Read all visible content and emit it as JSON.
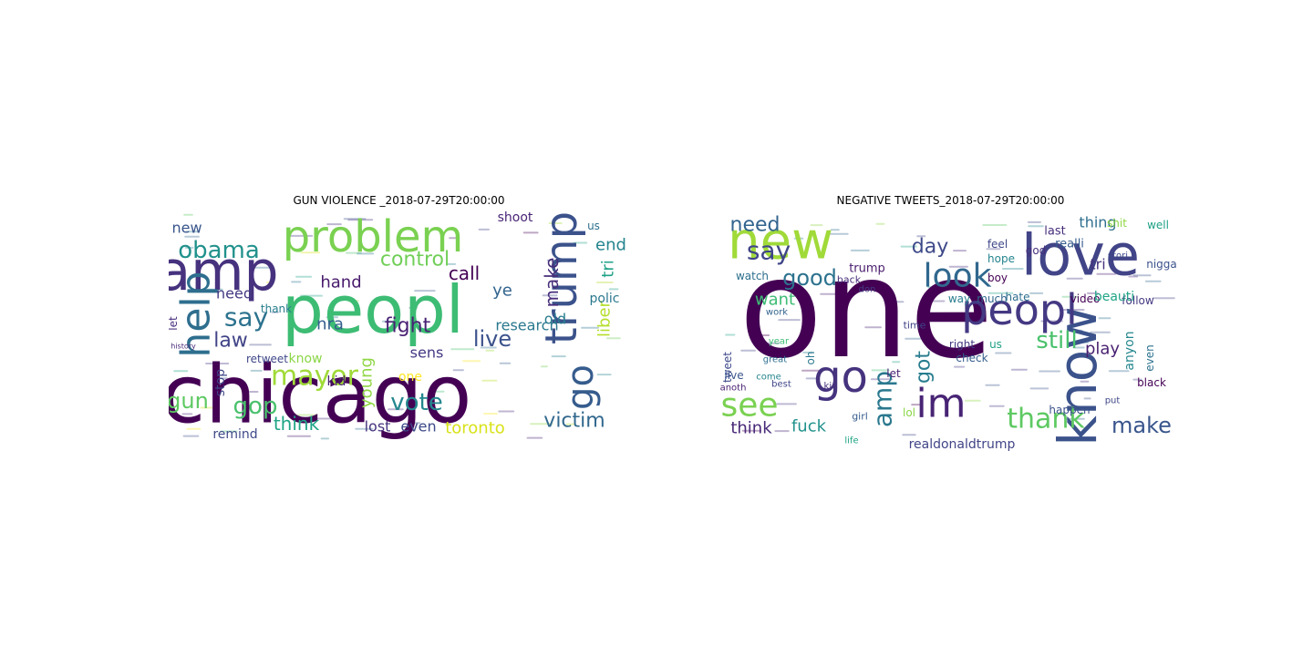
{
  "figure": {
    "panels": [
      {
        "title": "GUN VIOLENCE _2018-07-29T20:00:00",
        "words": [
          {
            "text": "chicago",
            "color": "#440154"
          },
          {
            "text": "peopl",
            "color": "#3dbc74"
          },
          {
            "text": "amp",
            "color": "#46327e"
          },
          {
            "text": "problem",
            "color": "#7ad151"
          },
          {
            "text": "help",
            "color": "#2e6e8e"
          },
          {
            "text": "trump",
            "color": "#3b528b"
          },
          {
            "text": "go",
            "color": "#365c8d"
          },
          {
            "text": "obama",
            "color": "#21918c"
          },
          {
            "text": "mayor",
            "color": "#a0da39"
          },
          {
            "text": "victim",
            "color": "#31688e"
          },
          {
            "text": "fight",
            "color": "#482173"
          },
          {
            "text": "vote",
            "color": "#24878e"
          },
          {
            "text": "gun",
            "color": "#5ec962"
          },
          {
            "text": "gop",
            "color": "#4ac16d"
          },
          {
            "text": "live",
            "color": "#3b528b"
          },
          {
            "text": "control",
            "color": "#70cf57"
          },
          {
            "text": "say",
            "color": "#2c728e"
          },
          {
            "text": "make",
            "color": "#472d7b"
          },
          {
            "text": "liber",
            "color": "#b5de2b"
          },
          {
            "text": "call",
            "color": "#440154"
          },
          {
            "text": "law",
            "color": "#414487"
          },
          {
            "text": "toronto",
            "color": "#d8e219"
          },
          {
            "text": "hand",
            "color": "#481a6c"
          },
          {
            "text": "research",
            "color": "#2a788e"
          },
          {
            "text": "think",
            "color": "#20a486"
          },
          {
            "text": "nra",
            "color": "#355f8d"
          },
          {
            "text": "sens",
            "color": "#443983"
          },
          {
            "text": "need",
            "color": "#443a83"
          },
          {
            "text": "young",
            "color": "#8fd744"
          },
          {
            "text": "tri",
            "color": "#1fa187"
          },
          {
            "text": "lost",
            "color": "#46337e"
          },
          {
            "text": "even",
            "color": "#3e4989"
          },
          {
            "text": "old",
            "color": "#287c8e"
          },
          {
            "text": "end",
            "color": "#25848e"
          },
          {
            "text": "stop",
            "color": "#404688"
          },
          {
            "text": "new",
            "color": "#39558c"
          },
          {
            "text": "ye",
            "color": "#32648e"
          },
          {
            "text": "remind",
            "color": "#3e4a89"
          },
          {
            "text": "know",
            "color": "#8bd646"
          },
          {
            "text": "one",
            "color": "#fde725"
          },
          {
            "text": "shoot",
            "color": "#482475"
          },
          {
            "text": "polic",
            "color": "#2a788e"
          },
          {
            "text": "kid",
            "color": "#481f70"
          },
          {
            "text": "retweet",
            "color": "#3f4788"
          },
          {
            "text": "thank",
            "color": "#287d8e"
          },
          {
            "text": "let",
            "color": "#472f7d"
          },
          {
            "text": "us",
            "color": "#2d708e"
          },
          {
            "text": "history",
            "color": "#482878"
          }
        ]
      },
      {
        "title": "NEGATIVE TWEETS_2018-07-29T20:00:00",
        "words": [
          {
            "text": "one",
            "color": "#440154"
          },
          {
            "text": "new",
            "color": "#a0da39"
          },
          {
            "text": "love",
            "color": "#414487"
          },
          {
            "text": "know",
            "color": "#3b528b"
          },
          {
            "text": "peopl",
            "color": "#443983"
          },
          {
            "text": "im",
            "color": "#482475"
          },
          {
            "text": "go",
            "color": "#46337e"
          },
          {
            "text": "see",
            "color": "#7ad151"
          },
          {
            "text": "look",
            "color": "#31688e"
          },
          {
            "text": "say",
            "color": "#404688"
          },
          {
            "text": "thank",
            "color": "#5ec962"
          },
          {
            "text": "amp",
            "color": "#2a788e"
          },
          {
            "text": "make",
            "color": "#39558c"
          },
          {
            "text": "day",
            "color": "#3e4989"
          },
          {
            "text": "good",
            "color": "#2c728e"
          },
          {
            "text": "need",
            "color": "#32648e"
          },
          {
            "text": "still",
            "color": "#4ac16d"
          },
          {
            "text": "got",
            "color": "#287c8e"
          },
          {
            "text": "fuck",
            "color": "#21918c"
          },
          {
            "text": "think",
            "color": "#482878"
          },
          {
            "text": "want",
            "color": "#3dbc74"
          },
          {
            "text": "play",
            "color": "#481f70"
          },
          {
            "text": "thing",
            "color": "#2e6e8e"
          },
          {
            "text": "realli",
            "color": "#365c8d"
          },
          {
            "text": "last",
            "color": "#472d7b"
          },
          {
            "text": "shit",
            "color": "#8fd744"
          },
          {
            "text": "well",
            "color": "#1fa187"
          },
          {
            "text": "video",
            "color": "#440154"
          },
          {
            "text": "follow",
            "color": "#443a83"
          },
          {
            "text": "beauti",
            "color": "#20a486"
          },
          {
            "text": "tri",
            "color": "#46327e"
          },
          {
            "text": "nigga",
            "color": "#3b528b"
          },
          {
            "text": "anyon",
            "color": "#24878e"
          },
          {
            "text": "realdonaldtrump",
            "color": "#414487"
          },
          {
            "text": "check",
            "color": "#355f8d"
          },
          {
            "text": "trump",
            "color": "#481a6c"
          },
          {
            "text": "watch",
            "color": "#2d708e"
          },
          {
            "text": "feel",
            "color": "#3f4788"
          },
          {
            "text": "hope",
            "color": "#25848e"
          },
          {
            "text": "boy",
            "color": "#440154"
          },
          {
            "text": "god",
            "color": "#472f7d"
          },
          {
            "text": "tweet",
            "color": "#3e4a89"
          },
          {
            "text": "oh",
            "color": "#2a788e"
          },
          {
            "text": "live",
            "color": "#39558c"
          },
          {
            "text": "lol",
            "color": "#8bd646"
          },
          {
            "text": "let",
            "color": "#482173"
          },
          {
            "text": "right",
            "color": "#443983"
          },
          {
            "text": "much",
            "color": "#31688e"
          },
          {
            "text": "hate",
            "color": "#2e6e8e"
          },
          {
            "text": "way",
            "color": "#287d8e"
          },
          {
            "text": "us",
            "color": "#1fa187"
          },
          {
            "text": "year",
            "color": "#3dbc74"
          },
          {
            "text": "work",
            "color": "#32648e"
          },
          {
            "text": "best",
            "color": "#404688"
          },
          {
            "text": "anoth",
            "color": "#481f70"
          },
          {
            "text": "kid",
            "color": "#46337e"
          },
          {
            "text": "girl",
            "color": "#365c8d"
          },
          {
            "text": "life",
            "color": "#20a486"
          },
          {
            "text": "even",
            "color": "#2c728e"
          },
          {
            "text": "happen",
            "color": "#3b528b"
          },
          {
            "text": "time",
            "color": "#414487"
          },
          {
            "text": "back",
            "color": "#472d7b"
          },
          {
            "text": "don",
            "color": "#443a83"
          },
          {
            "text": "stori",
            "color": "#3e4989"
          },
          {
            "text": "black",
            "color": "#440154"
          },
          {
            "text": "put",
            "color": "#3f4788"
          },
          {
            "text": "come",
            "color": "#25848e"
          },
          {
            "text": "great",
            "color": "#2d708e"
          }
        ]
      }
    ]
  }
}
